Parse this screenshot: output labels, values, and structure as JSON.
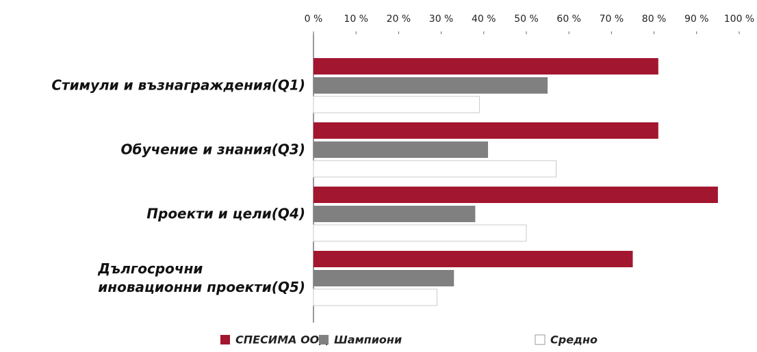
{
  "chart_data": {
    "type": "bar",
    "orientation": "horizontal",
    "categories": [
      "Стимули и възнаграждения(Q1)",
      "Обучение и знания(Q3)",
      "Проекти и цели(Q4)",
      "Дългосрочни\nиновационни проекти(Q5)"
    ],
    "series": [
      {
        "name": "СПЕСИМА ООД",
        "color": "#a3162f",
        "values": [
          81,
          81,
          95,
          75
        ]
      },
      {
        "name": "Шампиони",
        "color": "#808080",
        "values": [
          55,
          41,
          38,
          33
        ]
      },
      {
        "name": "Средно",
        "color": "#ffffff",
        "values": [
          39,
          57,
          50,
          29
        ]
      }
    ],
    "xlim": [
      0,
      100
    ],
    "xticks": [
      {
        "value": 0,
        "label": "0 %"
      },
      {
        "value": 10,
        "label": "10 %"
      },
      {
        "value": 20,
        "label": "20 %"
      },
      {
        "value": 30,
        "label": "30 %"
      },
      {
        "value": 40,
        "label": "40 %"
      },
      {
        "value": 50,
        "label": "50 %"
      },
      {
        "value": 60,
        "label": "60 %"
      },
      {
        "value": 70,
        "label": "70 %"
      },
      {
        "value": 80,
        "label": "80 %"
      },
      {
        "value": 90,
        "label": "90 %"
      },
      {
        "value": 100,
        "label": "100 %"
      }
    ],
    "grid": false,
    "legend": "bottom"
  }
}
